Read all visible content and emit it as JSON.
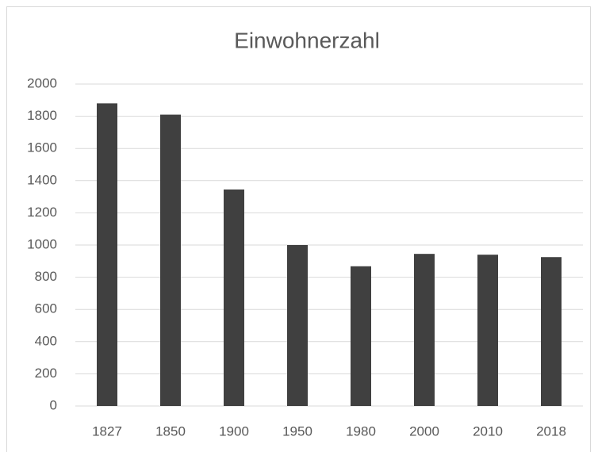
{
  "chart_data": {
    "type": "bar",
    "title": "Einwohnerzahl",
    "categories": [
      "1827",
      "1850",
      "1900",
      "1950",
      "1980",
      "2000",
      "2010",
      "2018"
    ],
    "values": [
      1880,
      1810,
      1345,
      1000,
      868,
      945,
      940,
      925
    ],
    "color": "#404040",
    "ylim": [
      0,
      2000
    ],
    "yticks": [
      0,
      200,
      400,
      600,
      800,
      1000,
      1200,
      1400,
      1600,
      1800,
      2000
    ],
    "grid": true
  }
}
